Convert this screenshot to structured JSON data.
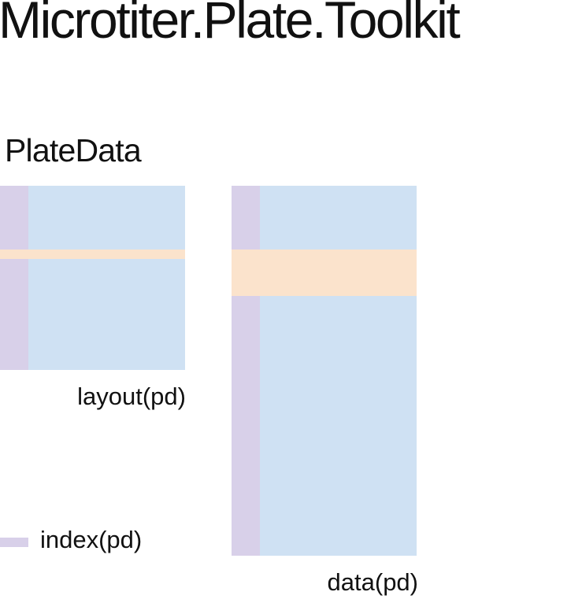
{
  "title": "Microtiter.Plate.Toolkit",
  "subtitle": "PlateData",
  "layout": {
    "caption": "layout(pd)"
  },
  "data": {
    "caption": "data(pd)"
  },
  "legend": {
    "label": "index(pd)"
  },
  "colors": {
    "cells": "#cfe1f3",
    "index": "#d8d0e9",
    "row_highlight": "#fbe3cc",
    "text": "#111111"
  }
}
